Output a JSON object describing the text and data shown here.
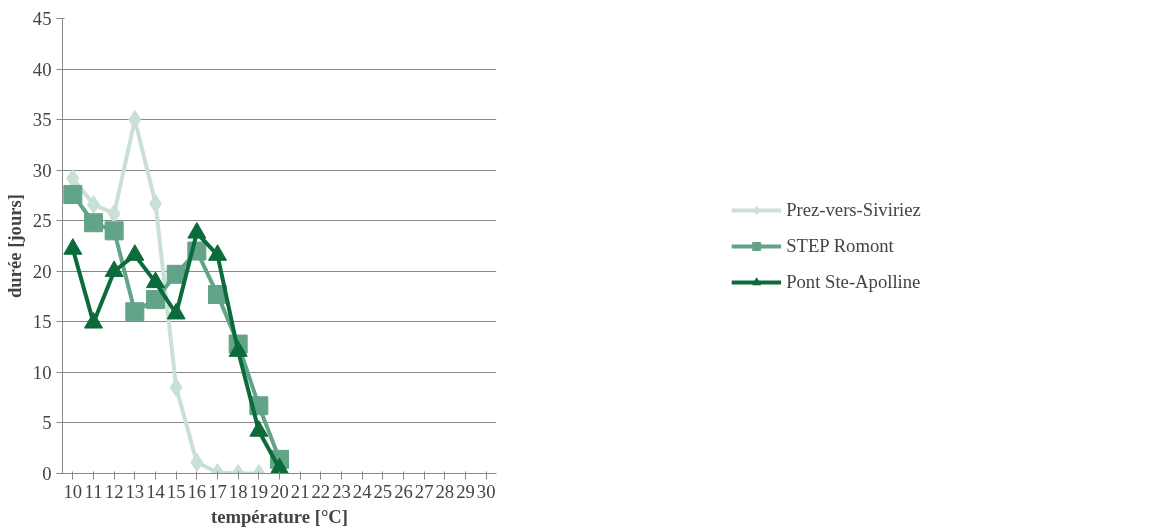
{
  "chart_data": {
    "type": "line",
    "xlabel": "température [°C]",
    "ylabel": "durée [jours]",
    "categories": [
      "10",
      "11",
      "12",
      "13",
      "14",
      "15",
      "16",
      "17",
      "18",
      "19",
      "20",
      "21",
      "22",
      "23",
      "24",
      "25",
      "26",
      "27",
      "28",
      "29",
      "30"
    ],
    "series": [
      {
        "name": "Prez-vers-Siviriez",
        "color": "#c9e0d6",
        "marker": "diamond",
        "values": [
          29.2,
          26.6,
          25.7,
          35.0,
          26.7,
          8.5,
          1.1,
          0.1,
          0,
          0,
          null,
          null,
          null,
          null,
          null,
          null,
          null,
          null,
          null,
          null,
          null
        ]
      },
      {
        "name": "STEP Romont",
        "color": "#62a488",
        "marker": "square",
        "values": [
          27.6,
          24.8,
          24.0,
          16.0,
          17.2,
          19.7,
          22.0,
          17.7,
          12.8,
          6.7,
          1.4,
          null,
          null,
          null,
          null,
          null,
          null,
          null,
          null,
          null,
          null
        ]
      },
      {
        "name": "Pont Ste-Apolline",
        "color": "#0b6b3a",
        "marker": "triangle",
        "values": [
          22.2,
          14.9,
          20.0,
          21.6,
          18.9,
          15.8,
          23.8,
          21.6,
          12.1,
          4.2,
          0.5,
          null,
          null,
          null,
          null,
          null,
          null,
          null,
          null,
          null,
          null
        ]
      }
    ],
    "ylim": [
      0,
      45
    ],
    "yticks": [
      0,
      5,
      10,
      15,
      20,
      25,
      30,
      35,
      40,
      45
    ],
    "grid": "y",
    "legend": "right",
    "line_style": "solid"
  }
}
